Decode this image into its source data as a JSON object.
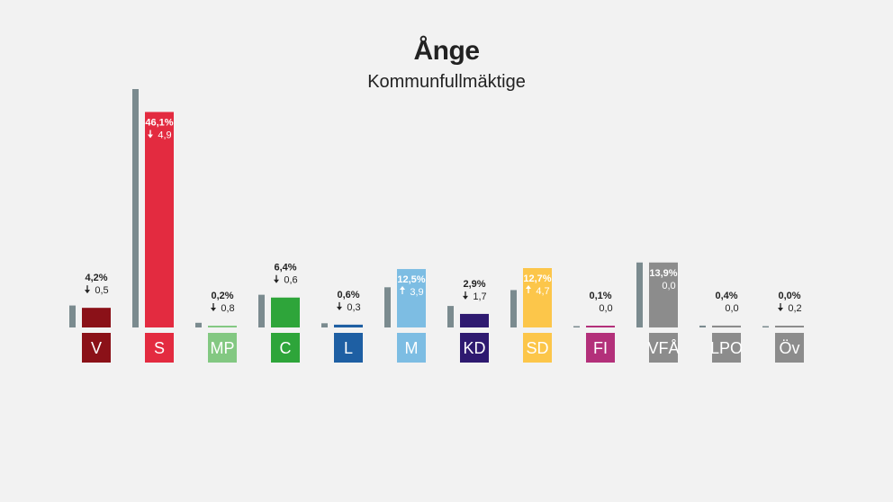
{
  "header": {
    "title": "Ånge",
    "subtitle": "Kommunfullmäktige"
  },
  "chart_data": {
    "type": "bar",
    "title": "Ånge",
    "subtitle": "Kommunfullmäktige",
    "ylim": [
      0,
      55
    ],
    "categories": [
      "V",
      "S",
      "MP",
      "C",
      "L",
      "M",
      "KD",
      "SD",
      "FI",
      "VFÅ",
      "LPO",
      "Öv"
    ],
    "series": [
      {
        "role": "previous",
        "color": "#7b8b8f",
        "values": [
          4.7,
          51.0,
          1.0,
          7.0,
          0.9,
          8.6,
          4.6,
          8.0,
          0.1,
          13.9,
          0.4,
          0.2
        ]
      },
      {
        "role": "current",
        "values": [
          4.2,
          46.1,
          0.2,
          6.4,
          0.6,
          12.5,
          2.9,
          12.7,
          0.1,
          13.9,
          0.4,
          0.0
        ]
      }
    ],
    "value_labels": [
      "4,2%",
      "46,1%",
      "0,2%",
      "6,4%",
      "0,6%",
      "12,5%",
      "2,9%",
      "12,7%",
      "0,1%",
      "13,9%",
      "0,4%",
      "0,0%"
    ],
    "change_labels": [
      "0,5",
      "4,9",
      "0,8",
      "0,6",
      "0,3",
      "3,9",
      "1,7",
      "4,7",
      "0,0",
      "0,0",
      "0,0",
      "0,2"
    ],
    "change_direction": [
      "down",
      "down",
      "down",
      "down",
      "down",
      "up",
      "down",
      "up",
      "none",
      "none",
      "none",
      "down"
    ],
    "party_colors": [
      "#8b1118",
      "#e32b40",
      "#83c882",
      "#2ea53a",
      "#1e5fa3",
      "#7dbde3",
      "#2e1a70",
      "#fcc64a",
      "#b3307a",
      "#8c8c8c",
      "#8c8c8c",
      "#8c8c8c"
    ]
  }
}
